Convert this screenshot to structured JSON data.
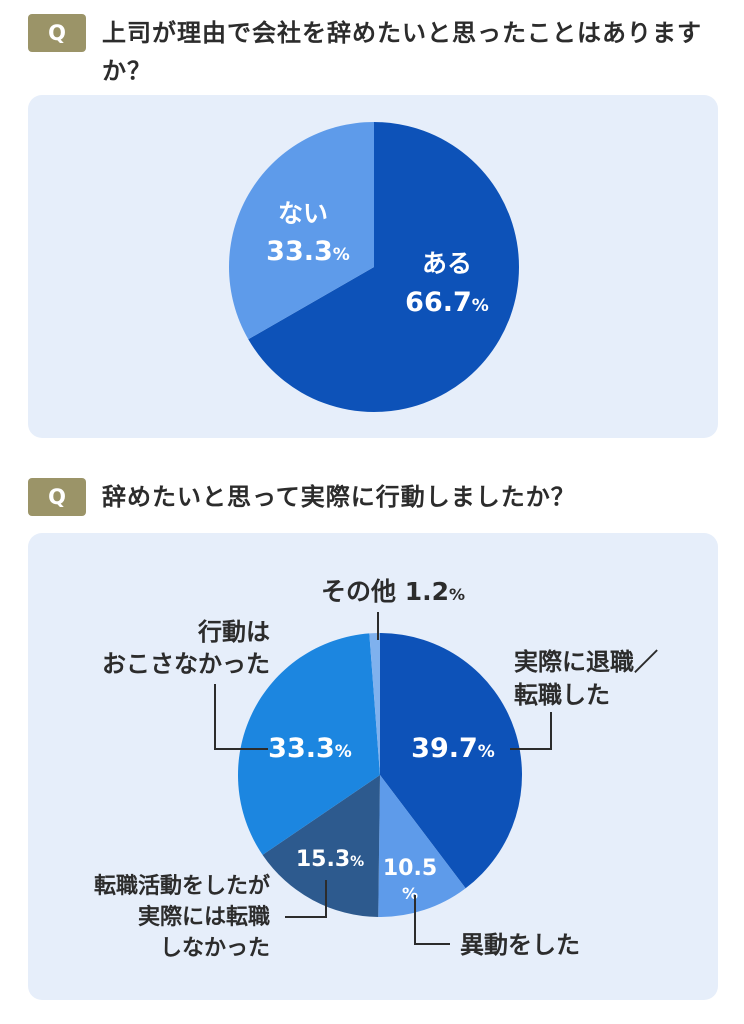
{
  "questions": [
    {
      "badge": "Q",
      "text": "上司が理由で会社を辞めたいと思ったことはありますか？"
    },
    {
      "badge": "Q",
      "text": "辞めたいと思って実際に行動しましたか？"
    }
  ],
  "colors": {
    "badge": "#9b9468",
    "card": "#e6eefa",
    "dark_blue": "#0d52b8",
    "light_blue": "#5e9bea",
    "mid_blue": "#1c86e0",
    "navy": "#2d5a8e",
    "pale_blue": "#7fb1ee"
  },
  "chart_data": [
    {
      "type": "pie",
      "slices": [
        {
          "label": "ある",
          "value": 66.7,
          "value_text": "66.7",
          "unit": "%",
          "color": "#0d52b8"
        },
        {
          "label": "ない",
          "value": 33.3,
          "value_text": "33.3",
          "unit": "%",
          "color": "#5e9bea"
        }
      ]
    },
    {
      "type": "pie",
      "slices": [
        {
          "label": "実際に退職／転職した",
          "value": 39.7,
          "value_text": "39.7",
          "unit": "%",
          "color": "#0d52b8"
        },
        {
          "label": "異動をした",
          "value": 10.5,
          "value_text": "10.5",
          "unit": "%",
          "color": "#5e9bea"
        },
        {
          "label": "転職活動をしたが実際には転職しなかった",
          "value": 15.3,
          "value_text": "15.3",
          "unit": "%",
          "color": "#2d5a8e"
        },
        {
          "label": "行動はおこさなかった",
          "value": 33.3,
          "value_text": "33.3",
          "unit": "%",
          "color": "#1c86e0"
        },
        {
          "label": "その他",
          "value": 1.2,
          "value_text": "1.2",
          "unit": "%",
          "color": "#7fb1ee"
        }
      ]
    }
  ]
}
